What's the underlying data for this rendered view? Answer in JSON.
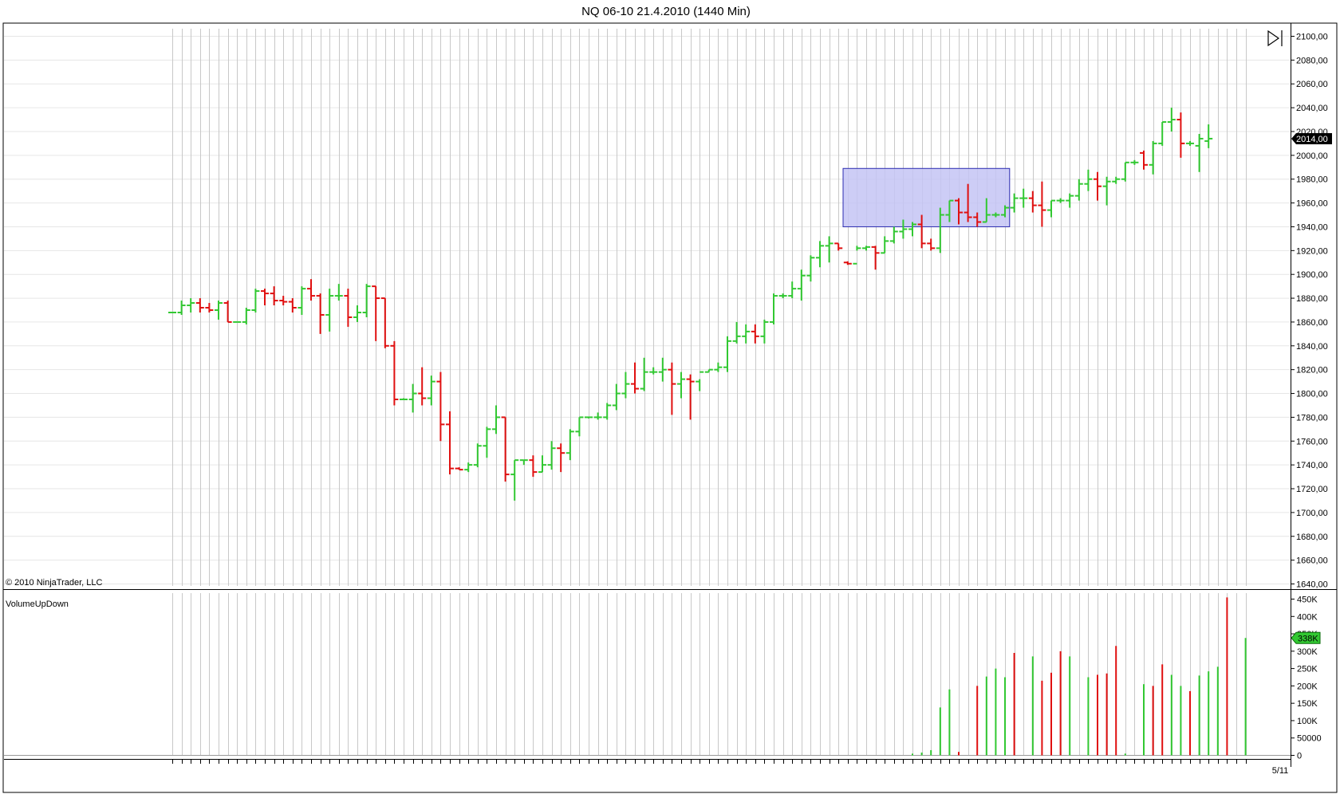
{
  "chart_data": {
    "type": "ohlc",
    "title": "NQ 06-10  21.4.2010 (1440 Min)",
    "copyright": "© 2010 NinjaTrader, LLC",
    "end_date_label": "5/11",
    "colors": {
      "up": "#32c832",
      "down": "#e01010",
      "grid": "#c8c8c8",
      "box_fill": "#c4c4f4",
      "box_stroke": "#2a2ab0",
      "frame": "#000000"
    },
    "price_panel": {
      "ylim": [
        1640,
        2105
      ],
      "tick_labels": [
        "2100,00",
        "2080,00",
        "2060,00",
        "2040,00",
        "2020,00",
        "2000,00",
        "1980,00",
        "1960,00",
        "1940,00",
        "1920,00",
        "1900,00",
        "1880,00",
        "1860,00",
        "1840,00",
        "1820,00",
        "1800,00",
        "1780,00",
        "1760,00",
        "1740,00",
        "1720,00",
        "1700,00",
        "1680,00",
        "1660,00",
        "1640,00"
      ],
      "tick_values": [
        2100,
        2080,
        2060,
        2040,
        2020,
        2000,
        1980,
        1960,
        1940,
        1920,
        1900,
        1880,
        1860,
        1840,
        1820,
        1800,
        1780,
        1760,
        1740,
        1720,
        1700,
        1680,
        1660,
        1640
      ],
      "last_price_label": "2014,00",
      "last_price": 2014,
      "highlight_box": {
        "x_start_index": 72.5,
        "x_end_index": 90.5,
        "y_low": 1940,
        "y_high": 1989
      }
    },
    "volume_panel": {
      "indicator_name": "VolumeUpDown",
      "ylim": [
        0,
        460000
      ],
      "tick_labels": [
        "450K",
        "400K",
        "350K",
        "300K",
        "250K",
        "200K",
        "150K",
        "100K",
        "50000",
        "0"
      ],
      "tick_values": [
        450000,
        400000,
        350000,
        300000,
        250000,
        200000,
        150000,
        100000,
        50000,
        0
      ],
      "last_volume_label": "338K",
      "last_volume": 338000
    },
    "bars": [
      {
        "o": 1868,
        "h": 1868,
        "l": 1868,
        "c": 1868
      },
      {
        "o": 1868,
        "h": 1878,
        "l": 1866,
        "c": 1874
      },
      {
        "o": 1874,
        "h": 1880,
        "l": 1868,
        "c": 1876
      },
      {
        "o": 1876,
        "h": 1880,
        "l": 1868,
        "c": 1872
      },
      {
        "o": 1872,
        "h": 1876,
        "l": 1868,
        "c": 1870
      },
      {
        "o": 1870,
        "h": 1878,
        "l": 1862,
        "c": 1876
      },
      {
        "o": 1876,
        "h": 1878,
        "l": 1860,
        "c": 1860
      },
      {
        "o": 1860,
        "h": 1860,
        "l": 1860,
        "c": 1860
      },
      {
        "o": 1860,
        "h": 1872,
        "l": 1858,
        "c": 1870
      },
      {
        "o": 1870,
        "h": 1888,
        "l": 1868,
        "c": 1886
      },
      {
        "o": 1886,
        "h": 1888,
        "l": 1874,
        "c": 1884
      },
      {
        "o": 1884,
        "h": 1890,
        "l": 1874,
        "c": 1878
      },
      {
        "o": 1878,
        "h": 1882,
        "l": 1874,
        "c": 1877
      },
      {
        "o": 1877,
        "h": 1880,
        "l": 1868,
        "c": 1872
      },
      {
        "o": 1872,
        "h": 1890,
        "l": 1866,
        "c": 1888
      },
      {
        "o": 1888,
        "h": 1896,
        "l": 1878,
        "c": 1882
      },
      {
        "o": 1882,
        "h": 1884,
        "l": 1850,
        "c": 1866
      },
      {
        "o": 1866,
        "h": 1888,
        "l": 1852,
        "c": 1882
      },
      {
        "o": 1882,
        "h": 1892,
        "l": 1878,
        "c": 1882
      },
      {
        "o": 1882,
        "h": 1888,
        "l": 1856,
        "c": 1864
      },
      {
        "o": 1864,
        "h": 1874,
        "l": 1860,
        "c": 1868
      },
      {
        "o": 1868,
        "h": 1892,
        "l": 1864,
        "c": 1890
      },
      {
        "o": 1890,
        "h": 1890,
        "l": 1844,
        "c": 1880
      },
      {
        "o": 1880,
        "h": 1880,
        "l": 1838,
        "c": 1840
      },
      {
        "o": 1840,
        "h": 1844,
        "l": 1790,
        "c": 1795
      },
      {
        "o": 1795,
        "h": 1796,
        "l": 1795,
        "c": 1795
      },
      {
        "o": 1795,
        "h": 1808,
        "l": 1784,
        "c": 1800
      },
      {
        "o": 1800,
        "h": 1822,
        "l": 1790,
        "c": 1796
      },
      {
        "o": 1796,
        "h": 1815,
        "l": 1790,
        "c": 1810
      },
      {
        "o": 1810,
        "h": 1818,
        "l": 1760,
        "c": 1774
      },
      {
        "o": 1774,
        "h": 1785,
        "l": 1732,
        "c": 1737
      },
      {
        "o": 1737,
        "h": 1738,
        "l": 1736,
        "c": 1736
      },
      {
        "o": 1736,
        "h": 1742,
        "l": 1734,
        "c": 1740
      },
      {
        "o": 1740,
        "h": 1758,
        "l": 1738,
        "c": 1756
      },
      {
        "o": 1756,
        "h": 1772,
        "l": 1746,
        "c": 1770
      },
      {
        "o": 1770,
        "h": 1790,
        "l": 1766,
        "c": 1780
      },
      {
        "o": 1780,
        "h": 1780,
        "l": 1726,
        "c": 1732
      },
      {
        "o": 1732,
        "h": 1744,
        "l": 1710,
        "c": 1744
      },
      {
        "o": 1744,
        "h": 1744,
        "l": 1740,
        "c": 1744
      },
      {
        "o": 1744,
        "h": 1748,
        "l": 1730,
        "c": 1734
      },
      {
        "o": 1734,
        "h": 1748,
        "l": 1734,
        "c": 1740
      },
      {
        "o": 1740,
        "h": 1760,
        "l": 1736,
        "c": 1754
      },
      {
        "o": 1754,
        "h": 1758,
        "l": 1734,
        "c": 1750
      },
      {
        "o": 1750,
        "h": 1770,
        "l": 1744,
        "c": 1768
      },
      {
        "o": 1768,
        "h": 1780,
        "l": 1764,
        "c": 1780
      },
      {
        "o": 1780,
        "h": 1780,
        "l": 1779,
        "c": 1780
      },
      {
        "o": 1780,
        "h": 1784,
        "l": 1778,
        "c": 1780
      },
      {
        "o": 1780,
        "h": 1792,
        "l": 1778,
        "c": 1790
      },
      {
        "o": 1790,
        "h": 1808,
        "l": 1786,
        "c": 1800
      },
      {
        "o": 1800,
        "h": 1818,
        "l": 1796,
        "c": 1808
      },
      {
        "o": 1808,
        "h": 1826,
        "l": 1800,
        "c": 1804
      },
      {
        "o": 1804,
        "h": 1830,
        "l": 1802,
        "c": 1818
      },
      {
        "o": 1818,
        "h": 1822,
        "l": 1816,
        "c": 1818
      },
      {
        "o": 1818,
        "h": 1830,
        "l": 1810,
        "c": 1820
      },
      {
        "o": 1820,
        "h": 1826,
        "l": 1782,
        "c": 1808
      },
      {
        "o": 1808,
        "h": 1818,
        "l": 1796,
        "c": 1812
      },
      {
        "o": 1812,
        "h": 1816,
        "l": 1778,
        "c": 1810
      },
      {
        "o": 1810,
        "h": 1812,
        "l": 1802,
        "c": 1818
      },
      {
        "o": 1818,
        "h": 1820,
        "l": 1818,
        "c": 1820
      },
      {
        "o": 1820,
        "h": 1826,
        "l": 1818,
        "c": 1822
      },
      {
        "o": 1822,
        "h": 1848,
        "l": 1818,
        "c": 1844
      },
      {
        "o": 1844,
        "h": 1860,
        "l": 1842,
        "c": 1848
      },
      {
        "o": 1848,
        "h": 1858,
        "l": 1842,
        "c": 1852
      },
      {
        "o": 1852,
        "h": 1858,
        "l": 1842,
        "c": 1848
      },
      {
        "o": 1848,
        "h": 1862,
        "l": 1842,
        "c": 1860
      },
      {
        "o": 1860,
        "h": 1884,
        "l": 1858,
        "c": 1882
      },
      {
        "o": 1882,
        "h": 1884,
        "l": 1880,
        "c": 1882
      },
      {
        "o": 1882,
        "h": 1894,
        "l": 1880,
        "c": 1888
      },
      {
        "o": 1888,
        "h": 1904,
        "l": 1878,
        "c": 1899
      },
      {
        "o": 1899,
        "h": 1916,
        "l": 1894,
        "c": 1914
      },
      {
        "o": 1914,
        "h": 1928,
        "l": 1906,
        "c": 1924
      },
      {
        "o": 1924,
        "h": 1932,
        "l": 1910,
        "c": 1926
      },
      {
        "o": 1926,
        "h": 1926,
        "l": 1920,
        "c": 1922
      },
      {
        "o": 1910,
        "h": 1911,
        "l": 1908,
        "c": 1909
      },
      {
        "o": 1909,
        "h": 1924,
        "l": 1920,
        "c": 1922
      },
      {
        "o": 1922,
        "h": 1924,
        "l": 1920,
        "c": 1923
      },
      {
        "o": 1923,
        "h": 1924,
        "l": 1904,
        "c": 1918
      },
      {
        "o": 1918,
        "h": 1932,
        "l": 1918,
        "c": 1928
      },
      {
        "o": 1928,
        "h": 1940,
        "l": 1926,
        "c": 1936
      },
      {
        "o": 1936,
        "h": 1946,
        "l": 1930,
        "c": 1938
      },
      {
        "o": 1938,
        "h": 1944,
        "l": 1932,
        "c": 1942
      },
      {
        "o": 1942,
        "h": 1950,
        "l": 1922,
        "c": 1926
      },
      {
        "o": 1926,
        "h": 1930,
        "l": 1920,
        "c": 1922
      },
      {
        "o": 1922,
        "h": 1956,
        "l": 1918,
        "c": 1950
      },
      {
        "o": 1950,
        "h": 1962,
        "l": 1944,
        "c": 1962
      },
      {
        "o": 1962,
        "h": 1964,
        "l": 1942,
        "c": 1952
      },
      {
        "o": 1952,
        "h": 1976,
        "l": 1944,
        "c": 1948
      },
      {
        "o": 1948,
        "h": 1952,
        "l": 1940,
        "c": 1944
      },
      {
        "o": 1944,
        "h": 1964,
        "l": 1944,
        "c": 1950
      },
      {
        "o": 1950,
        "h": 1952,
        "l": 1948,
        "c": 1950
      },
      {
        "o": 1950,
        "h": 1958,
        "l": 1948,
        "c": 1956
      },
      {
        "o": 1956,
        "h": 1968,
        "l": 1952,
        "c": 1964
      },
      {
        "o": 1964,
        "h": 1972,
        "l": 1956,
        "c": 1964
      },
      {
        "o": 1964,
        "h": 1970,
        "l": 1952,
        "c": 1958
      },
      {
        "o": 1958,
        "h": 1978,
        "l": 1940,
        "c": 1954
      },
      {
        "o": 1954,
        "h": 1962,
        "l": 1948,
        "c": 1962
      },
      {
        "o": 1962,
        "h": 1964,
        "l": 1960,
        "c": 1962
      },
      {
        "o": 1962,
        "h": 1968,
        "l": 1956,
        "c": 1966
      },
      {
        "o": 1966,
        "h": 1980,
        "l": 1962,
        "c": 1976
      },
      {
        "o": 1976,
        "h": 1988,
        "l": 1970,
        "c": 1980
      },
      {
        "o": 1980,
        "h": 1986,
        "l": 1962,
        "c": 1974
      },
      {
        "o": 1974,
        "h": 1982,
        "l": 1958,
        "c": 1978
      },
      {
        "o": 1978,
        "h": 1982,
        "l": 1976,
        "c": 1980
      },
      {
        "o": 1980,
        "h": 1994,
        "l": 1978,
        "c": 1994
      },
      {
        "o": 1994,
        "h": 1996,
        "l": 1992,
        "c": 1994
      },
      {
        "o": 2002,
        "h": 2004,
        "l": 1988,
        "c": 1992
      },
      {
        "o": 1992,
        "h": 2012,
        "l": 1984,
        "c": 2010
      },
      {
        "o": 2010,
        "h": 2028,
        "l": 2008,
        "c": 2028
      },
      {
        "o": 2028,
        "h": 2040,
        "l": 2020,
        "c": 2030
      },
      {
        "o": 2030,
        "h": 2036,
        "l": 1998,
        "c": 2010
      },
      {
        "o": 2010,
        "h": 2012,
        "l": 2008,
        "c": 2010
      },
      {
        "o": 2008,
        "h": 2018,
        "l": 1986,
        "c": 2014
      },
      {
        "o": 2012,
        "h": 2026,
        "l": 2006,
        "c": 2014
      }
    ],
    "volume": [
      {
        "i": 80,
        "v": 5000,
        "dir": "up"
      },
      {
        "i": 81,
        "v": 8000,
        "dir": "up"
      },
      {
        "i": 82,
        "v": 15000,
        "dir": "up"
      },
      {
        "i": 83,
        "v": 138000,
        "dir": "up"
      },
      {
        "i": 84,
        "v": 190000,
        "dir": "up"
      },
      {
        "i": 85,
        "v": 10000,
        "dir": "down"
      },
      {
        "i": 87,
        "v": 200000,
        "dir": "down"
      },
      {
        "i": 88,
        "v": 227000,
        "dir": "up"
      },
      {
        "i": 89,
        "v": 250000,
        "dir": "up"
      },
      {
        "i": 90,
        "v": 225000,
        "dir": "up"
      },
      {
        "i": 91,
        "v": 295000,
        "dir": "down"
      },
      {
        "i": 93,
        "v": 285000,
        "dir": "up"
      },
      {
        "i": 94,
        "v": 215000,
        "dir": "down"
      },
      {
        "i": 95,
        "v": 238000,
        "dir": "down"
      },
      {
        "i": 96,
        "v": 300000,
        "dir": "down"
      },
      {
        "i": 97,
        "v": 285000,
        "dir": "up"
      },
      {
        "i": 99,
        "v": 225000,
        "dir": "up"
      },
      {
        "i": 100,
        "v": 232000,
        "dir": "down"
      },
      {
        "i": 101,
        "v": 236000,
        "dir": "down"
      },
      {
        "i": 102,
        "v": 315000,
        "dir": "down"
      },
      {
        "i": 103,
        "v": 5000,
        "dir": "up"
      },
      {
        "i": 105,
        "v": 205000,
        "dir": "up"
      },
      {
        "i": 106,
        "v": 200000,
        "dir": "down"
      },
      {
        "i": 107,
        "v": 262000,
        "dir": "down"
      },
      {
        "i": 108,
        "v": 232000,
        "dir": "up"
      },
      {
        "i": 109,
        "v": 200000,
        "dir": "up"
      },
      {
        "i": 110,
        "v": 185000,
        "dir": "down"
      },
      {
        "i": 111,
        "v": 230000,
        "dir": "up"
      },
      {
        "i": 112,
        "v": 242000,
        "dir": "up"
      },
      {
        "i": 113,
        "v": 255000,
        "dir": "up"
      },
      {
        "i": 114,
        "v": 455000,
        "dir": "down"
      },
      {
        "i": 116,
        "v": 338000,
        "dir": "up"
      }
    ]
  }
}
